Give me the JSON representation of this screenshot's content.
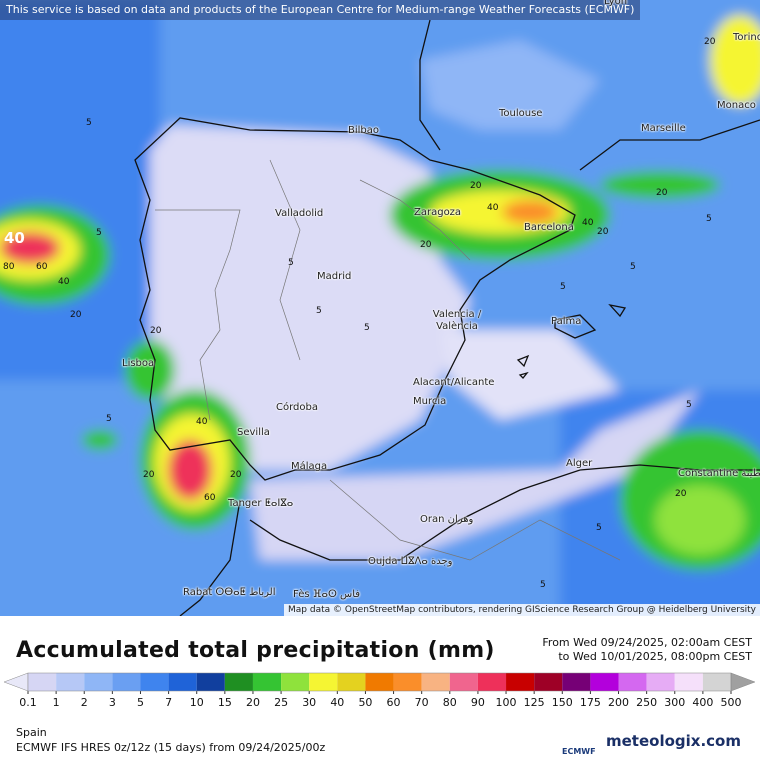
{
  "header": {
    "notice": "This service is based on data and products of the European Centre for Medium-range Weather Forecasts (ECMWF)"
  },
  "map": {
    "cities": [
      "Lyon",
      "Torino",
      "Toulouse",
      "Marseille",
      "Monaco",
      "Bilbao",
      "Valladolid",
      "Zaragoza",
      "Barcelona",
      "Madrid",
      "Valencia / València",
      "Palma",
      "Lisboa",
      "Alacant/Alicante",
      "Murcia",
      "Córdoba",
      "Sevilla",
      "Málaga",
      "Tanger ⵟⴰⵏⴵⴰ",
      "Alger",
      "Constantine قسنطينة",
      "Oran وهران",
      "Oujda ⵡⴵⴷⴰ وجدة",
      "Rabat ⵔⴱⴰⵟ الرباط",
      "Fès ⴼⴰⵙ فاس"
    ],
    "contour_labels": [
      40,
      60,
      80,
      40,
      20,
      5,
      5,
      5,
      5,
      5,
      5,
      5,
      20,
      40,
      20,
      40,
      20,
      20,
      5,
      20,
      40,
      20,
      60,
      20,
      5,
      5,
      20,
      5,
      5,
      20
    ],
    "attribution": "Map data © OpenStreetMap contributors, rendering GIScience Research Group @ Heidelberg University"
  },
  "legend": {
    "title": "Accumulated total precipitation (mm)",
    "period": [
      "From Wed 09/24/2025, 02:00am CEST",
      "to Wed 10/01/2025, 08:00pm CEST"
    ],
    "below_color": "#e8e8f8",
    "levels": [
      {
        "value": 0.1,
        "color": "#d6d6f4"
      },
      {
        "value": 1,
        "color": "#b6c8f6"
      },
      {
        "value": 2,
        "color": "#8fb6f6"
      },
      {
        "value": 3,
        "color": "#6a9ff2"
      },
      {
        "value": 5,
        "color": "#3f84ee"
      },
      {
        "value": 7,
        "color": "#1f63d8"
      },
      {
        "value": 10,
        "color": "#113f9e"
      },
      {
        "value": 15,
        "color": "#1f8f22"
      },
      {
        "value": 20,
        "color": "#35c433"
      },
      {
        "value": 25,
        "color": "#8fe23c"
      },
      {
        "value": 30,
        "color": "#f5f533"
      },
      {
        "value": 40,
        "color": "#e4d21f"
      },
      {
        "value": 50,
        "color": "#f07a00"
      },
      {
        "value": 60,
        "color": "#fa8e2a"
      },
      {
        "value": 70,
        "color": "#f8b382"
      },
      {
        "value": 80,
        "color": "#f0658e"
      },
      {
        "value": 90,
        "color": "#ee305a"
      },
      {
        "value": 100,
        "color": "#c80000"
      },
      {
        "value": 125,
        "color": "#9e0026"
      },
      {
        "value": 150,
        "color": "#760076"
      },
      {
        "value": 175,
        "color": "#b300dc"
      },
      {
        "value": 200,
        "color": "#d468f0"
      },
      {
        "value": 250,
        "color": "#e6acf5"
      },
      {
        "value": 300,
        "color": "#f5e0fa"
      },
      {
        "value": 400,
        "color": "#d4d4d4"
      },
      {
        "value": 500,
        "color": "#a0a0a0"
      }
    ]
  },
  "footer": {
    "region": "Spain",
    "model": "ECMWF IFS HRES 0z/12z (15 days) from 09/24/2025/00z",
    "logo_small": "ECMWF",
    "brand": "meteologix.com"
  }
}
